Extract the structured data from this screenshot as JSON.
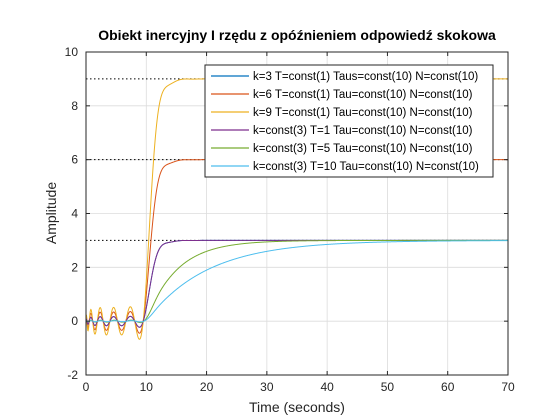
{
  "chart_data": {
    "type": "line",
    "title": "Obiekt inercyjny I rzędu z opóźnieniem odpowiedź skokowa",
    "xlabel": "Time (seconds)",
    "ylabel": "Amplitude",
    "xlim": [
      0,
      70
    ],
    "ylim": [
      -2,
      10
    ],
    "xticks": [
      "0",
      "10",
      "20",
      "30",
      "40",
      "50",
      "60",
      "70"
    ],
    "yticks": [
      "-2",
      "0",
      "2",
      "4",
      "6",
      "8",
      "10"
    ],
    "grid": true,
    "legend_position": "top-right",
    "delay": 10,
    "pade_order": 10,
    "reference_levels": [
      3,
      6,
      9
    ],
    "series": [
      {
        "name": "k=3 T=const(1) Taus=const(10) N=const(10)",
        "k": 3,
        "T": 1,
        "color": "#0072BD"
      },
      {
        "name": "k=6 T=const(1) Tau=const(10) N=const(10)",
        "k": 6,
        "T": 1,
        "color": "#D95319"
      },
      {
        "name": "k=9 T=const(1) Tau=const(10) N=const(10)",
        "k": 9,
        "T": 1,
        "color": "#EDB120"
      },
      {
        "name": "k=const(3) T=1 Tau=const(10) N=const(10)",
        "k": 3,
        "T": 1,
        "color": "#7E2F8E"
      },
      {
        "name": "k=const(3) T=5 Tau=const(10) N=const(10)",
        "k": 3,
        "T": 5,
        "color": "#77AC30"
      },
      {
        "name": "k=const(3) T=10 Tau=const(10) N=const(10)",
        "k": 3,
        "T": 10,
        "color": "#4DBEEE"
      }
    ]
  }
}
